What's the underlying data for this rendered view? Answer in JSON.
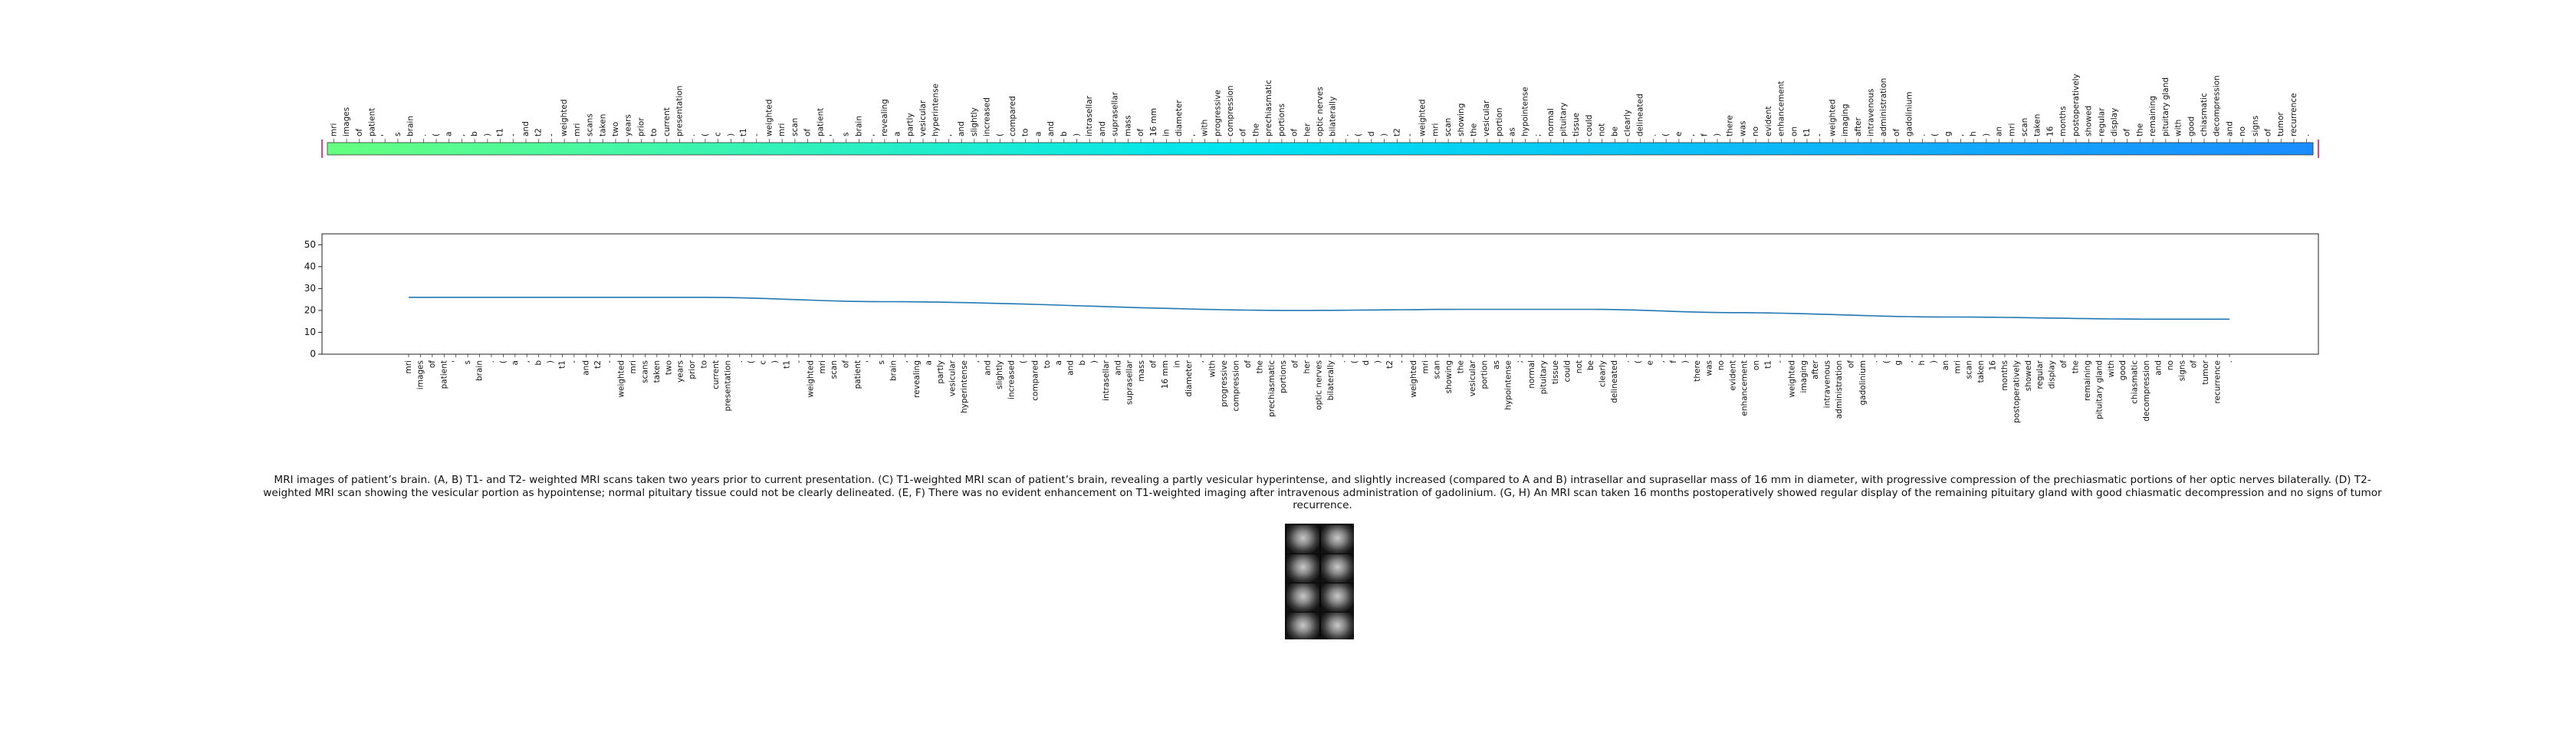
{
  "chart_data": [
    {
      "type": "heatmap",
      "tokens": [
        "mri",
        "images",
        "of",
        "patient",
        "'",
        "s",
        "brain",
        ".",
        "(",
        "a",
        ",",
        "b",
        ")",
        "t1",
        "-",
        "and",
        "t2",
        "-",
        "weighted",
        "mri",
        "scans",
        "taken",
        "two",
        "years",
        "prior",
        "to",
        "current",
        "presentation",
        ".",
        "(",
        "c",
        ")",
        "t1",
        "-",
        "weighted",
        "mri",
        "scan",
        "of",
        "patient",
        "'",
        "s",
        "brain",
        ",",
        "revealing",
        "a",
        "partly",
        "vesicular",
        "hyperintense",
        ",",
        "and",
        "slightly",
        "increased",
        "(",
        "compared",
        "to",
        "a",
        "and",
        "b",
        ")",
        "intrasellar",
        "and",
        "suprasellar",
        "mass",
        "of",
        "16 mm",
        "in",
        "diameter",
        ",",
        "with",
        "progressive",
        "compression",
        "of",
        "the",
        "prechiasmatic",
        "portions",
        "of",
        "her",
        "optic nerves",
        "bilaterally",
        ".",
        "(",
        "d",
        ")",
        "t2",
        "-",
        "weighted",
        "mri",
        "scan",
        "showing",
        "the",
        "vesicular",
        "portion",
        "as",
        "hypointense",
        ";",
        "normal",
        "pituitary",
        "tissue",
        "could",
        "not",
        "be",
        "clearly",
        "delineated",
        ".",
        "(",
        "e",
        ",",
        "f",
        ")",
        "there",
        "was",
        "no",
        "evident",
        "enhancement",
        "on",
        "t1",
        "-",
        "weighted",
        "imaging",
        "after",
        "intravenous",
        "administration",
        "of",
        "gadolinium",
        ".",
        "(",
        "g",
        ",",
        "h",
        ")",
        "an",
        "mri",
        "scan",
        "taken",
        "16",
        "months",
        "postoperatively",
        "showed",
        "regular",
        "display",
        "of",
        "the",
        "remaining",
        "pituitary gland",
        "with",
        "good",
        "chiasmatic",
        "decompression",
        "and",
        "no",
        "signs",
        "of",
        "tumor",
        "recurrence",
        "."
      ],
      "color_start": "#66ff80",
      "color_mid": "#00e5f0",
      "color_end": "#1a8cff",
      "marker_color": "#e0448a"
    },
    {
      "type": "line",
      "ylim": [
        0,
        55
      ],
      "yticks": [
        0,
        10,
        20,
        30,
        40,
        50
      ],
      "grid": false,
      "line_color": "#1f77b4",
      "x": [
        "mri",
        "images",
        "of",
        "patient",
        "'",
        "s",
        "brain",
        ".",
        "(",
        "a",
        ",",
        "b",
        ")",
        "t1",
        "-",
        "and",
        "t2",
        "-",
        "weighted",
        "mri",
        "scans",
        "taken",
        "two",
        "years",
        "prior",
        "to",
        "current",
        "presentation",
        ".",
        "(",
        "c",
        ")",
        "t1",
        "-",
        "weighted",
        "mri",
        "scan",
        "of",
        "patient",
        "'",
        "s",
        "brain",
        ",",
        "revealing",
        "a",
        "partly",
        "vesicular",
        "hyperintense",
        ",",
        "and",
        "slightly",
        "increased",
        "(",
        "compared",
        "to",
        "a",
        "and",
        "b",
        ")",
        "intrasellar",
        "and",
        "suprasellar",
        "mass",
        "of",
        "16 mm",
        "in",
        "diameter",
        ",",
        "with",
        "progressive",
        "compression",
        "of",
        "the",
        "prechiasmatic",
        "portions",
        "of",
        "her",
        "optic nerves",
        "bilaterally",
        ".",
        "(",
        "d",
        ")",
        "t2",
        "-",
        "weighted",
        "mri",
        "scan",
        "showing",
        "the",
        "vesicular",
        "portion",
        "as",
        "hypointense",
        ";",
        "normal",
        "pituitary",
        "tissue",
        "could",
        "not",
        "be",
        "clearly",
        "delineated",
        ".",
        "(",
        "e",
        ",",
        "f",
        ")",
        "there",
        "was",
        "no",
        "evident",
        "enhancement",
        "on",
        "t1",
        "-",
        "weighted",
        "imaging",
        "after",
        "intravenous",
        "administration",
        "of",
        "gadolinium",
        ".",
        "(",
        "g",
        ",",
        "h",
        ")",
        "an",
        "mri",
        "scan",
        "taken",
        "16",
        "months",
        "postoperatively",
        "showed",
        "regular",
        "display",
        "of",
        "the",
        "remaining",
        "pituitary gland",
        "with",
        "good",
        "chiasmatic",
        "decompression",
        "and",
        "no",
        "signs",
        "of",
        "tumor",
        "recurrence",
        "."
      ],
      "key_points": [
        [
          0,
          26
        ],
        [
          25,
          26
        ],
        [
          40,
          24
        ],
        [
          75,
          20
        ],
        [
          90,
          20.5
        ],
        [
          100,
          20.5
        ],
        [
          112,
          19
        ],
        [
          130,
          17
        ],
        [
          148,
          16
        ]
      ]
    }
  ],
  "caption": "MRI images of patient’s brain. (A, B) T1- and T2- weighted MRI scans taken two years prior to current presentation. (C) T1-weighted MRI scan of patient’s brain, revealing a partly vesicular hyperintense, and slightly increased (compared to A and B) intrasellar and suprasellar mass of 16 mm in diameter, with progressive compression of the prechiasmatic portions of her optic nerves bilaterally. (D) T2-weighted MRI scan showing the vesicular portion as hypointense; normal pituitary tissue could not be clearly delineated. (E, F) There was no evident enhancement on T1-weighted imaging after intravenous administration of gadolinium. (G, H) An MRI scan taken 16 months postoperatively showed regular display of the remaining pituitary gland with good chiasmatic decompression and no signs of tumor recurrence.",
  "thumbnail": {
    "icon": "mri-grid-thumbnail"
  }
}
